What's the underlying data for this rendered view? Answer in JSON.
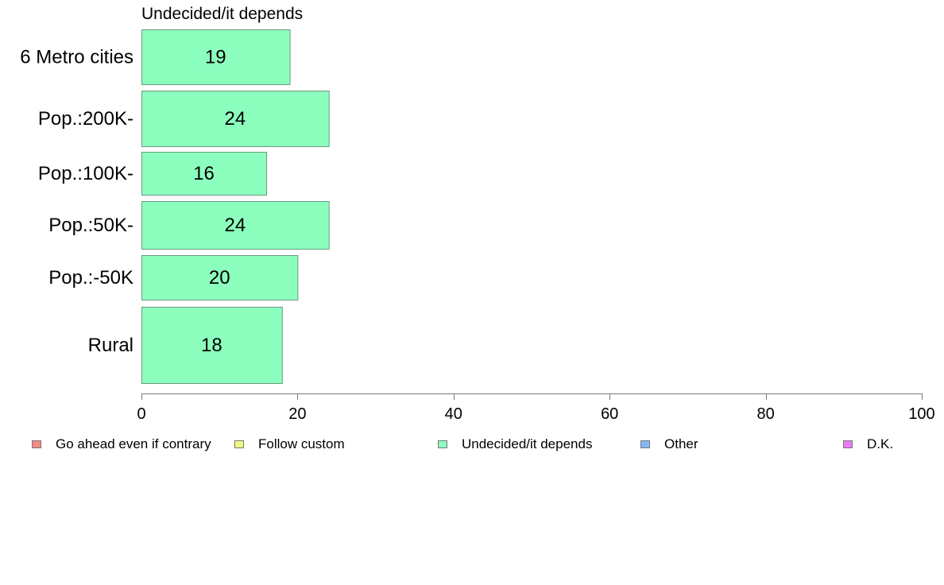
{
  "chart_data": {
    "type": "bar",
    "orientation": "horizontal",
    "title": "Undecided/it depends",
    "categories": [
      "6 Metro cities",
      "Pop.:200K-",
      "Pop.:100K-",
      "Pop.:50K-",
      "Pop.:-50K",
      "Rural"
    ],
    "series": [
      {
        "name": "Undecided/it depends",
        "values": [
          19,
          24,
          16,
          24,
          20,
          18
        ],
        "color": "#8cffbe"
      }
    ],
    "xlim": [
      0,
      100
    ],
    "xticks": [
      0,
      20,
      40,
      60,
      80,
      100
    ],
    "grid": false,
    "legend_position": "bottom",
    "bar_border_color": "#6a9a7d",
    "axis_color": "#7a7a7a",
    "legend": [
      {
        "label": "Go ahead even if contrary",
        "color": "#f78b83"
      },
      {
        "label": "Follow custom",
        "color": "#eef97f"
      },
      {
        "label": "Undecided/it depends",
        "color": "#8cffbe"
      },
      {
        "label": "Other",
        "color": "#85b5f5"
      },
      {
        "label": "D.K.",
        "color": "#ea7cf2"
      }
    ]
  }
}
